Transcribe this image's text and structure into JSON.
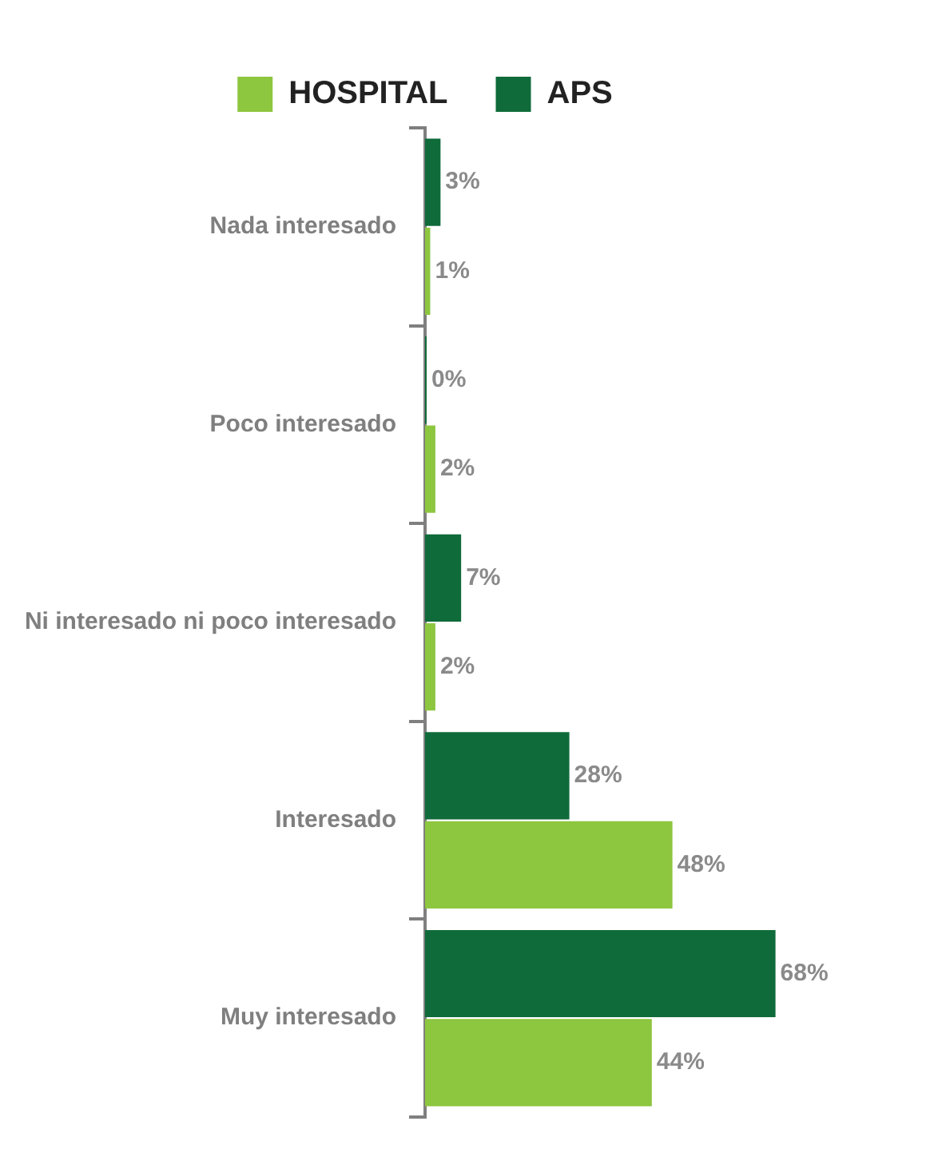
{
  "chart_data": {
    "type": "bar",
    "orientation": "horizontal",
    "categories": [
      "Nada interesado",
      "Poco interesado",
      "Ni interesado ni poco interesado",
      "Interesado",
      "Muy interesado"
    ],
    "series": [
      {
        "name": "HOSPITAL",
        "color": "#8dc63f",
        "values": [
          1,
          2,
          2,
          48,
          44
        ],
        "value_labels": [
          "1%",
          "2%",
          "2%",
          "48%",
          "44%"
        ]
      },
      {
        "name": "APS",
        "color": "#0f6b3a",
        "values": [
          3,
          0,
          7,
          28,
          68
        ],
        "value_labels": [
          "3%",
          "0%",
          "7%",
          "28%",
          "68%"
        ]
      }
    ],
    "tick_labels": "y",
    "grid": false,
    "legend": "top"
  }
}
